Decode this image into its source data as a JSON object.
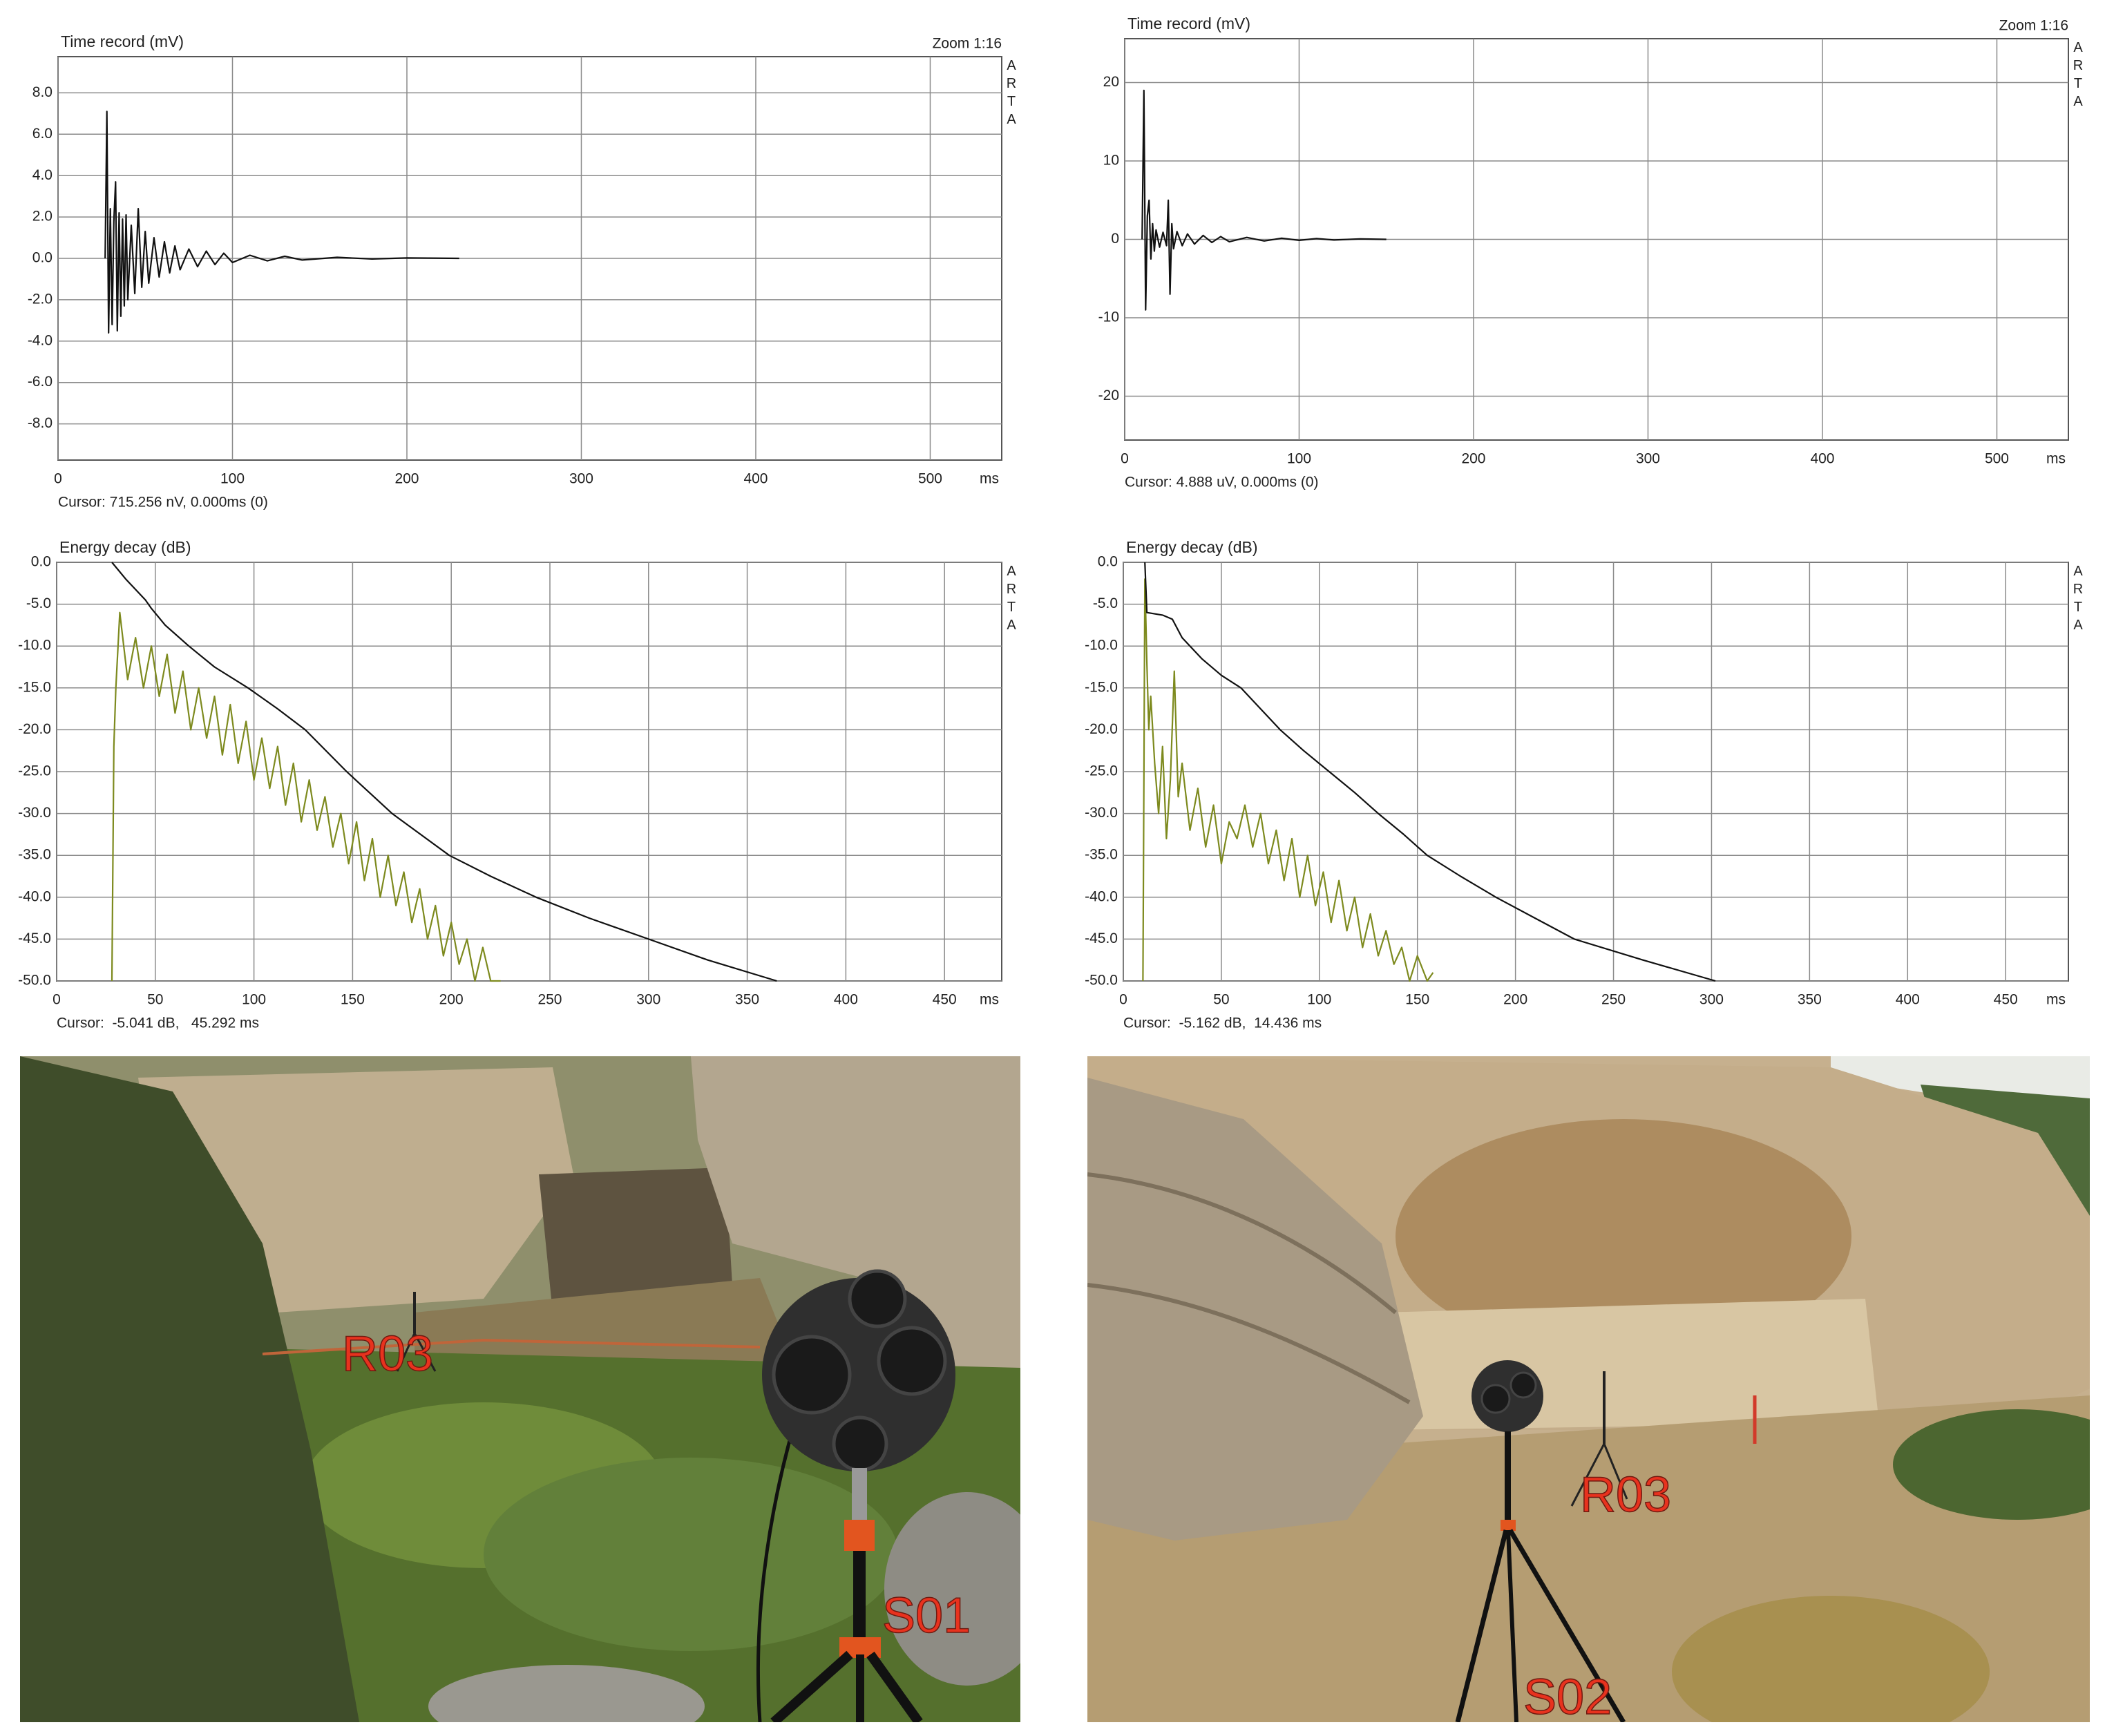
{
  "chart_data": [
    {
      "type": "line",
      "title": "Time record (mV)",
      "annotation": "Zoom 1:16",
      "watermark": "ARTA",
      "xlabel": "ms",
      "cursor_text": "Cursor: 715.256 nV, 0.000ms (0)",
      "grid": true,
      "xlim": [
        0,
        541
      ],
      "xticks": [
        0,
        100,
        200,
        300,
        400,
        500
      ],
      "ylim": [
        -9.75,
        9.75
      ],
      "yticks": [
        {
          "value": 8,
          "label": "8.0"
        },
        {
          "value": 6,
          "label": "6.0"
        },
        {
          "value": 4,
          "label": "4.0"
        },
        {
          "value": 2,
          "label": "2.0"
        },
        {
          "value": 0,
          "label": "0.0"
        },
        {
          "value": -2,
          "label": "-2.0"
        },
        {
          "value": -4,
          "label": "-4.0"
        },
        {
          "value": -6,
          "label": "-6.0"
        },
        {
          "value": -8,
          "label": "-8.0"
        }
      ],
      "series": [
        {
          "color": "#111111",
          "x": [
            27,
            28,
            29,
            30,
            31,
            32,
            33,
            34,
            35,
            36,
            37,
            38,
            39,
            40,
            42,
            44,
            46,
            48,
            50,
            52,
            55,
            58,
            61,
            64,
            67,
            70,
            75,
            80,
            85,
            90,
            95,
            100,
            110,
            120,
            130,
            140,
            160,
            180,
            200,
            230
          ],
          "values": [
            0,
            7.1,
            -3.6,
            2.4,
            -3.2,
            1.8,
            3.7,
            -3.5,
            2.2,
            -2.8,
            1.9,
            -2.3,
            2.1,
            -2.0,
            1.6,
            -1.7,
            2.4,
            -1.4,
            1.3,
            -1.2,
            1.0,
            -0.9,
            0.8,
            -0.7,
            0.6,
            -0.55,
            0.45,
            -0.4,
            0.35,
            -0.3,
            0.25,
            -0.2,
            0.15,
            -0.12,
            0.1,
            -0.08,
            0.05,
            -0.03,
            0.02,
            0
          ]
        }
      ]
    },
    {
      "type": "line",
      "title": "Time record (mV)",
      "annotation": "Zoom 1:16",
      "watermark": "ARTA",
      "xlabel": "ms",
      "cursor_text": "Cursor: 4.888 uV, 0.000ms (0)",
      "grid": true,
      "xlim": [
        0,
        541
      ],
      "xticks": [
        0,
        100,
        200,
        300,
        400,
        500
      ],
      "ylim": [
        -25.6,
        25.6
      ],
      "yticks": [
        20,
        10,
        0,
        -10,
        -20
      ],
      "series": [
        {
          "color": "#111111",
          "x": [
            10,
            11,
            12,
            13,
            14,
            15,
            16,
            17,
            18,
            20,
            22,
            24,
            25,
            26,
            27,
            28,
            30,
            33,
            36,
            40,
            45,
            50,
            55,
            60,
            70,
            80,
            90,
            100,
            110,
            120,
            135,
            150
          ],
          "values": [
            0,
            19,
            -9,
            3,
            5,
            -2.5,
            2,
            -1.5,
            1.2,
            -1,
            0.9,
            -0.8,
            5,
            -7,
            2,
            -1.2,
            1,
            -0.8,
            0.7,
            -0.6,
            0.5,
            -0.4,
            0.35,
            -0.3,
            0.25,
            -0.2,
            0.15,
            -0.12,
            0.1,
            -0.08,
            0.05,
            0
          ]
        }
      ]
    },
    {
      "type": "line",
      "title": "Energy decay (dB)",
      "watermark": "ARTA",
      "xlabel": "ms",
      "cursor_text": "Cursor:  -5.041 dB,   45.292 ms",
      "grid": true,
      "xlim": [
        0,
        479
      ],
      "xticks": [
        0,
        50,
        100,
        150,
        200,
        250,
        300,
        350,
        400,
        450
      ],
      "ylim": [
        -50,
        0
      ],
      "yticks": [
        {
          "value": 0,
          "label": "0.0"
        },
        {
          "value": -5,
          "label": "-5.0"
        },
        {
          "value": -10,
          "label": "-10.0"
        },
        {
          "value": -15,
          "label": "-15.0"
        },
        {
          "value": -20,
          "label": "-20.0"
        },
        {
          "value": -25,
          "label": "-25.0"
        },
        {
          "value": -30,
          "label": "-30.0"
        },
        {
          "value": -35,
          "label": "-35.0"
        },
        {
          "value": -40,
          "label": "-40.0"
        },
        {
          "value": -45,
          "label": "-45.0"
        },
        {
          "value": -50,
          "label": "-50.0"
        }
      ],
      "series": [
        {
          "color": "#7d8a1e",
          "x": [
            28,
            29,
            30,
            32,
            36,
            40,
            44,
            48,
            52,
            56,
            60,
            64,
            68,
            72,
            76,
            80,
            84,
            88,
            92,
            96,
            100,
            104,
            108,
            112,
            116,
            120,
            124,
            128,
            132,
            136,
            140,
            144,
            148,
            152,
            156,
            160,
            164,
            168,
            172,
            176,
            180,
            184,
            188,
            192,
            196,
            200,
            204,
            208,
            212,
            216,
            220,
            225
          ],
          "values": [
            -50,
            -22,
            -15,
            -6,
            -14,
            -9,
            -15,
            -10,
            -16,
            -11,
            -18,
            -13,
            -20,
            -15,
            -21,
            -16,
            -23,
            -17,
            -24,
            -19,
            -26,
            -21,
            -27,
            -22,
            -29,
            -24,
            -31,
            -26,
            -32,
            -28,
            -34,
            -30,
            -36,
            -31,
            -38,
            -33,
            -40,
            -35,
            -41,
            -37,
            -43,
            -39,
            -45,
            -41,
            -47,
            -43,
            -48,
            -45,
            -50,
            -46,
            -50,
            -50
          ]
        },
        {
          "color": "#111111",
          "x": [
            28,
            35,
            45,
            48,
            55,
            67,
            80,
            97,
            112,
            126,
            147,
            170,
            199,
            220,
            243,
            270,
            300,
            330,
            365
          ],
          "values": [
            0,
            -2,
            -4.5,
            -5.5,
            -7.5,
            -10,
            -12.5,
            -15,
            -17.5,
            -20,
            -25,
            -30,
            -35,
            -37.5,
            -40,
            -42.5,
            -45,
            -47.5,
            -50
          ]
        }
      ]
    },
    {
      "type": "line",
      "title": "Energy decay (dB)",
      "watermark": "ARTA",
      "xlabel": "ms",
      "cursor_text": "Cursor:  -5.162 dB,  14.436 ms",
      "grid": true,
      "xlim": [
        0,
        482
      ],
      "xticks": [
        0,
        50,
        100,
        150,
        200,
        250,
        300,
        350,
        400,
        450
      ],
      "ylim": [
        -50,
        0
      ],
      "yticks": [
        {
          "value": 0,
          "label": "0.0"
        },
        {
          "value": -5,
          "label": "-5.0"
        },
        {
          "value": -10,
          "label": "-10.0"
        },
        {
          "value": -15,
          "label": "-15.0"
        },
        {
          "value": -20,
          "label": "-20.0"
        },
        {
          "value": -25,
          "label": "-25.0"
        },
        {
          "value": -30,
          "label": "-30.0"
        },
        {
          "value": -35,
          "label": "-35.0"
        },
        {
          "value": -40,
          "label": "-40.0"
        },
        {
          "value": -45,
          "label": "-45.0"
        },
        {
          "value": -50,
          "label": "-50.0"
        }
      ],
      "series": [
        {
          "color": "#7d8a1e",
          "x": [
            10,
            11,
            12,
            13,
            14,
            16,
            18,
            20,
            22,
            24,
            26,
            28,
            30,
            34,
            38,
            42,
            46,
            50,
            54,
            58,
            62,
            66,
            70,
            74,
            78,
            82,
            86,
            90,
            94,
            98,
            102,
            106,
            110,
            114,
            118,
            122,
            126,
            130,
            134,
            138,
            142,
            146,
            150,
            155,
            158
          ],
          "values": [
            -50,
            -2,
            -12,
            -20,
            -16,
            -24,
            -30,
            -22,
            -33,
            -26,
            -13,
            -28,
            -24,
            -32,
            -27,
            -34,
            -29,
            -36,
            -31,
            -33,
            -29,
            -34,
            -30,
            -36,
            -32,
            -38,
            -33,
            -40,
            -35,
            -41,
            -37,
            -43,
            -38,
            -44,
            -40,
            -46,
            -42,
            -47,
            -44,
            -48,
            -46,
            -50,
            -47,
            -50,
            -49
          ]
        },
        {
          "color": "#111111",
          "x": [
            11,
            12,
            20,
            25,
            30,
            40,
            50,
            60,
            70,
            80,
            92,
            105,
            118,
            130,
            143,
            155,
            172,
            190,
            210,
            230,
            265,
            302
          ],
          "values": [
            0,
            -6,
            -6.3,
            -6.8,
            -9,
            -11.5,
            -13.5,
            -15,
            -17.5,
            -20,
            -22.5,
            -25,
            -27.5,
            -30,
            -32.5,
            -35,
            -37.5,
            -40,
            -42.5,
            -45,
            -47.5,
            -50
          ]
        }
      ]
    }
  ],
  "photos": [
    {
      "labels": [
        "R03",
        "S01"
      ]
    },
    {
      "labels": [
        "R03",
        "S02"
      ]
    }
  ]
}
